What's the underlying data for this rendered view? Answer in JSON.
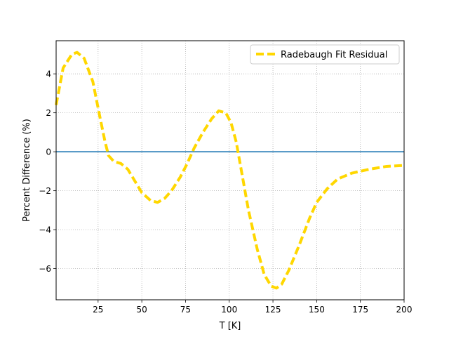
{
  "chart_data": {
    "type": "line",
    "title": "",
    "xlabel": "T [K]",
    "ylabel": "Percent Difference (%)",
    "xlim": [
      1,
      200
    ],
    "ylim": [
      -7.6,
      5.7
    ],
    "x_ticks": [
      25,
      50,
      75,
      100,
      125,
      150,
      175,
      200
    ],
    "y_ticks": [
      -6,
      -4,
      -2,
      0,
      2,
      4
    ],
    "grid": true,
    "legend": {
      "position": "top-right"
    },
    "series": [
      {
        "name": "Radebaugh Fit Residual",
        "color": "#ffd700",
        "style": "dashed",
        "x": [
          1,
          5,
          10,
          13,
          17,
          22,
          26,
          29,
          31,
          34,
          38,
          42,
          46,
          50,
          55,
          59,
          63,
          67,
          72,
          76,
          80,
          85,
          90,
          94,
          98,
          101,
          104,
          107,
          111,
          116,
          120,
          124,
          127,
          130,
          134,
          140,
          146,
          150,
          156,
          162,
          170,
          180,
          190,
          200
        ],
        "y": [
          2.4,
          4.3,
          5.0,
          5.1,
          4.8,
          3.6,
          1.8,
          0.5,
          -0.2,
          -0.5,
          -0.6,
          -0.9,
          -1.5,
          -2.1,
          -2.5,
          -2.6,
          -2.4,
          -2.0,
          -1.3,
          -0.6,
          0.2,
          1.0,
          1.7,
          2.1,
          2.0,
          1.5,
          0.5,
          -1.0,
          -3.0,
          -5.0,
          -6.3,
          -6.9,
          -7.0,
          -6.8,
          -6.1,
          -4.8,
          -3.4,
          -2.6,
          -1.9,
          -1.4,
          -1.1,
          -0.9,
          -0.75,
          -0.7
        ]
      },
      {
        "name": "",
        "color": "#1f77b4",
        "style": "solid",
        "x": [
          1,
          200
        ],
        "y": [
          0,
          0
        ]
      }
    ]
  }
}
